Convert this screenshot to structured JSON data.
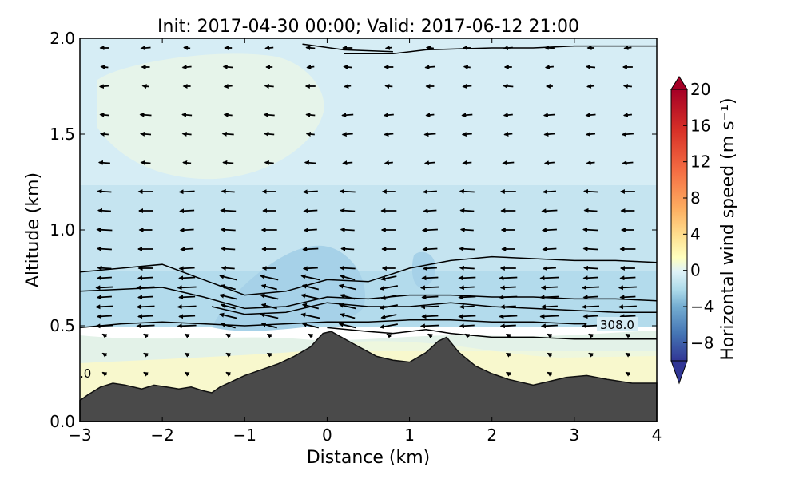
{
  "chart_data": {
    "type": "contour",
    "title": "Init: 2017-04-30 00:00; Valid: 2017-06-12 21:00",
    "xlabel": "Distance (km)",
    "ylabel": "Altitude (km)",
    "xlim": [
      -3,
      4
    ],
    "ylim": [
      0,
      2
    ],
    "xticks": [
      -3,
      -2,
      -1,
      0,
      1,
      2,
      3,
      4
    ],
    "xtick_labels": [
      "−3",
      "−2",
      "−1",
      "0",
      "1",
      "2",
      "3",
      "4"
    ],
    "yticks": [
      0,
      0.5,
      1,
      1.5,
      2
    ],
    "ytick_labels": [
      "0.0",
      "0.5",
      "1.0",
      "1.5",
      "2.0"
    ],
    "colorbar": {
      "label": "Horizontal wind speed (m s⁻¹)",
      "range": [
        -10,
        20
      ],
      "ticks": [
        -8,
        -4,
        0,
        4,
        8,
        12,
        16,
        20
      ],
      "tick_labels": [
        "−8",
        "−4",
        "0",
        "4",
        "8",
        "12",
        "16",
        "20"
      ],
      "extend": "both"
    },
    "contour_labels": [
      {
        "text": "308.0",
        "x": 3.55,
        "y": 0.5
      },
      {
        "text": ".0",
        "x": -2.98,
        "y": 0.25
      }
    ],
    "terrain": {
      "x": [
        -3,
        -2.9,
        -2.75,
        -2.6,
        -2.45,
        -2.25,
        -2.1,
        -1.95,
        -1.8,
        -1.65,
        -1.5,
        -1.4,
        -1.3,
        -1.15,
        -1.0,
        -0.8,
        -0.6,
        -0.4,
        -0.2,
        -0.05,
        0.05,
        0.3,
        0.6,
        0.8,
        1.0,
        1.2,
        1.35,
        1.45,
        1.6,
        1.8,
        2.0,
        2.2,
        2.5,
        2.7,
        2.9,
        3.15,
        3.4,
        3.7,
        4.0
      ],
      "y": [
        0.11,
        0.14,
        0.18,
        0.2,
        0.19,
        0.17,
        0.19,
        0.18,
        0.17,
        0.18,
        0.16,
        0.15,
        0.18,
        0.21,
        0.24,
        0.27,
        0.3,
        0.34,
        0.39,
        0.46,
        0.47,
        0.41,
        0.34,
        0.32,
        0.31,
        0.36,
        0.42,
        0.44,
        0.36,
        0.29,
        0.25,
        0.22,
        0.19,
        0.21,
        0.23,
        0.24,
        0.22,
        0.2,
        0.2
      ]
    },
    "isentropes": [
      {
        "x": [
          -3,
          -2.5,
          -2,
          -1.5,
          -1,
          -0.5,
          0,
          0.5,
          1,
          1.5,
          2,
          2.5,
          3,
          3.5,
          4
        ],
        "y": [
          0.78,
          0.8,
          0.82,
          0.74,
          0.66,
          0.68,
          0.74,
          0.73,
          0.8,
          0.84,
          0.86,
          0.85,
          0.84,
          0.84,
          0.83
        ]
      },
      {
        "x": [
          -3,
          -2.5,
          -2,
          -1.5,
          -1,
          -0.5,
          0,
          0.5,
          1,
          1.5,
          2,
          2.5,
          3,
          3.5,
          4
        ],
        "y": [
          0.68,
          0.69,
          0.7,
          0.65,
          0.59,
          0.6,
          0.65,
          0.64,
          0.66,
          0.66,
          0.65,
          0.65,
          0.64,
          0.64,
          0.63
        ]
      },
      {
        "x": [
          -1.4,
          -1,
          -0.5,
          0,
          0.5,
          1,
          1.5,
          2,
          2.5,
          3,
          3.5,
          4
        ],
        "y": [
          0.6,
          0.56,
          0.57,
          0.62,
          0.6,
          0.6,
          0.62,
          0.6,
          0.59,
          0.58,
          0.57,
          0.57
        ]
      },
      {
        "x": [
          -3,
          -2.5,
          -2,
          -1.5,
          -1,
          -0.5,
          0,
          0.5,
          1,
          1.5,
          2,
          2.5,
          3,
          3.15
        ],
        "y": [
          0.49,
          0.51,
          0.52,
          0.51,
          0.5,
          0.51,
          0.52,
          0.52,
          0.53,
          0.53,
          0.52,
          0.52,
          0.51,
          0.51
        ]
      },
      {
        "x": [
          0,
          0.5,
          0.8,
          1.2,
          1.5,
          2,
          2.5,
          3,
          4
        ],
        "y": [
          0.49,
          0.47,
          0.46,
          0.48,
          0.46,
          0.44,
          0.44,
          0.43,
          0.43
        ]
      },
      {
        "x": [
          0.2,
          0.8,
          1.2,
          2,
          2.5,
          3,
          3.5,
          4
        ],
        "y": [
          1.92,
          1.92,
          1.94,
          1.95,
          1.95,
          1.96,
          1.96,
          1.96
        ]
      },
      {
        "x": [
          -0.3,
          0.2,
          0.8
        ],
        "y": [
          1.97,
          1.94,
          1.93
        ]
      }
    ],
    "wind_field": {
      "x": [
        -2.7,
        -2.2,
        -1.7,
        -1.2,
        -0.7,
        -0.2,
        0.25,
        0.75,
        1.25,
        1.7,
        2.2,
        2.7,
        3.2,
        3.65
      ],
      "y": [
        0.25,
        0.35,
        0.45,
        0.5,
        0.55,
        0.6,
        0.65,
        0.7,
        0.75,
        0.8,
        0.9,
        1.0,
        1.1,
        1.2,
        1.35,
        1.5,
        1.6,
        1.75,
        1.85,
        1.95
      ],
      "note": "arrows point mostly westward (easterly flow) with speeds of ~1-5 m/s"
    }
  }
}
